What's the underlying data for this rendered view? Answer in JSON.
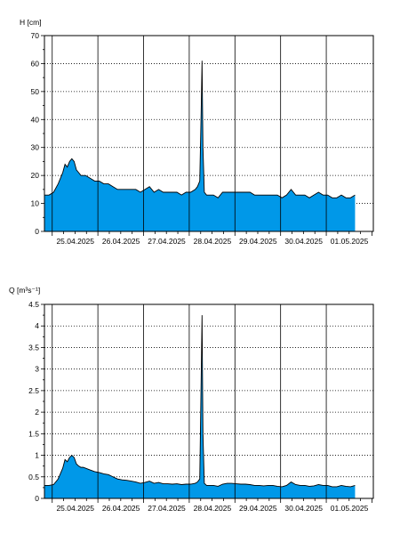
{
  "chart_data": [
    {
      "type": "area",
      "ylabel": "H [cm]",
      "ylim": [
        0,
        70
      ],
      "yticks": [
        0,
        10,
        20,
        30,
        40,
        50,
        60,
        70
      ],
      "ytick_labels": [
        "0",
        "10",
        "20",
        "30",
        "40",
        "50",
        "60",
        "70"
      ],
      "xlim": [
        0,
        7.2
      ],
      "day_starts": [
        0.17,
        1.17,
        2.17,
        3.17,
        4.17,
        5.17,
        6.17
      ],
      "xtick_labels": [
        "25.04.2025",
        "26.04.2025",
        "27.04.2025",
        "28.04.2025",
        "29.04.2025",
        "30.04.2025",
        "01.05.2025"
      ],
      "grid": true,
      "fill_color": "#0098e8",
      "line_color": "#000000",
      "x": [
        0.0,
        0.1,
        0.2,
        0.3,
        0.4,
        0.45,
        0.5,
        0.55,
        0.6,
        0.65,
        0.7,
        0.75,
        0.8,
        0.85,
        0.9,
        1.0,
        1.1,
        1.2,
        1.3,
        1.4,
        1.5,
        1.6,
        1.7,
        1.8,
        1.9,
        2.0,
        2.1,
        2.2,
        2.3,
        2.4,
        2.5,
        2.6,
        2.7,
        2.8,
        2.9,
        3.0,
        3.1,
        3.2,
        3.3,
        3.35,
        3.4,
        3.43,
        3.45,
        3.47,
        3.5,
        3.55,
        3.6,
        3.7,
        3.8,
        3.9,
        4.0,
        4.1,
        4.2,
        4.3,
        4.4,
        4.5,
        4.6,
        4.7,
        4.8,
        4.9,
        5.0,
        5.1,
        5.2,
        5.3,
        5.4,
        5.5,
        5.6,
        5.7,
        5.8,
        5.9,
        6.0,
        6.1,
        6.2,
        6.3,
        6.4,
        6.5,
        6.6,
        6.7,
        6.8
      ],
      "y": [
        13,
        13,
        14,
        17,
        21,
        24,
        23,
        25,
        26,
        25,
        22,
        21,
        20,
        20,
        20,
        19,
        18,
        18,
        17,
        17,
        16,
        15,
        15,
        15,
        15,
        15,
        14,
        15,
        16,
        14,
        15,
        14,
        14,
        14,
        14,
        13,
        14,
        14,
        15,
        16,
        18,
        42,
        61,
        30,
        14,
        13,
        13,
        13,
        12,
        14,
        14,
        14,
        14,
        14,
        14,
        14,
        13,
        13,
        13,
        13,
        13,
        13,
        12,
        13,
        15,
        13,
        13,
        13,
        12,
        13,
        14,
        13,
        13,
        12,
        12,
        13,
        12,
        12,
        13
      ]
    },
    {
      "type": "area",
      "ylabel": "Q [m³s⁻¹]",
      "ylim": [
        0,
        4.5
      ],
      "yticks": [
        0,
        0.5,
        1,
        1.5,
        2,
        2.5,
        3,
        3.5,
        4,
        4.5
      ],
      "ytick_labels": [
        "0",
        "0.5",
        "1",
        "1.5",
        "2",
        "2.5",
        "3",
        "3.5",
        "4",
        "4.5"
      ],
      "xlim": [
        0,
        7.2
      ],
      "day_starts": [
        0.17,
        1.17,
        2.17,
        3.17,
        4.17,
        5.17,
        6.17
      ],
      "xtick_labels": [
        "25.04.2025",
        "26.04.2025",
        "27.04.2025",
        "28.04.2025",
        "29.04.2025",
        "30.04.2025",
        "01.05.2025"
      ],
      "grid": true,
      "fill_color": "#0098e8",
      "line_color": "#000000",
      "x": [
        0.0,
        0.1,
        0.2,
        0.3,
        0.4,
        0.45,
        0.5,
        0.55,
        0.6,
        0.65,
        0.7,
        0.75,
        0.8,
        0.85,
        0.9,
        1.0,
        1.1,
        1.2,
        1.3,
        1.4,
        1.5,
        1.6,
        1.7,
        1.8,
        1.9,
        2.0,
        2.1,
        2.2,
        2.3,
        2.4,
        2.5,
        2.6,
        2.7,
        2.8,
        2.9,
        3.0,
        3.1,
        3.2,
        3.3,
        3.35,
        3.4,
        3.43,
        3.45,
        3.47,
        3.5,
        3.55,
        3.6,
        3.7,
        3.8,
        3.9,
        4.0,
        4.1,
        4.2,
        4.3,
        4.4,
        4.5,
        4.6,
        4.7,
        4.8,
        4.9,
        5.0,
        5.1,
        5.2,
        5.3,
        5.4,
        5.5,
        5.6,
        5.7,
        5.8,
        5.9,
        6.0,
        6.1,
        6.2,
        6.3,
        6.4,
        6.5,
        6.6,
        6.7,
        6.8
      ],
      "y": [
        0.3,
        0.3,
        0.32,
        0.45,
        0.7,
        0.9,
        0.85,
        0.95,
        1.0,
        0.95,
        0.8,
        0.75,
        0.72,
        0.72,
        0.7,
        0.66,
        0.62,
        0.6,
        0.57,
        0.55,
        0.5,
        0.45,
        0.43,
        0.42,
        0.4,
        0.38,
        0.35,
        0.37,
        0.4,
        0.35,
        0.37,
        0.34,
        0.34,
        0.33,
        0.34,
        0.32,
        0.33,
        0.33,
        0.35,
        0.38,
        0.45,
        2.7,
        4.25,
        1.5,
        0.35,
        0.3,
        0.3,
        0.3,
        0.28,
        0.33,
        0.35,
        0.35,
        0.34,
        0.33,
        0.33,
        0.32,
        0.3,
        0.3,
        0.29,
        0.3,
        0.3,
        0.28,
        0.27,
        0.3,
        0.38,
        0.32,
        0.3,
        0.3,
        0.28,
        0.29,
        0.32,
        0.3,
        0.3,
        0.27,
        0.27,
        0.3,
        0.28,
        0.27,
        0.3
      ]
    }
  ]
}
